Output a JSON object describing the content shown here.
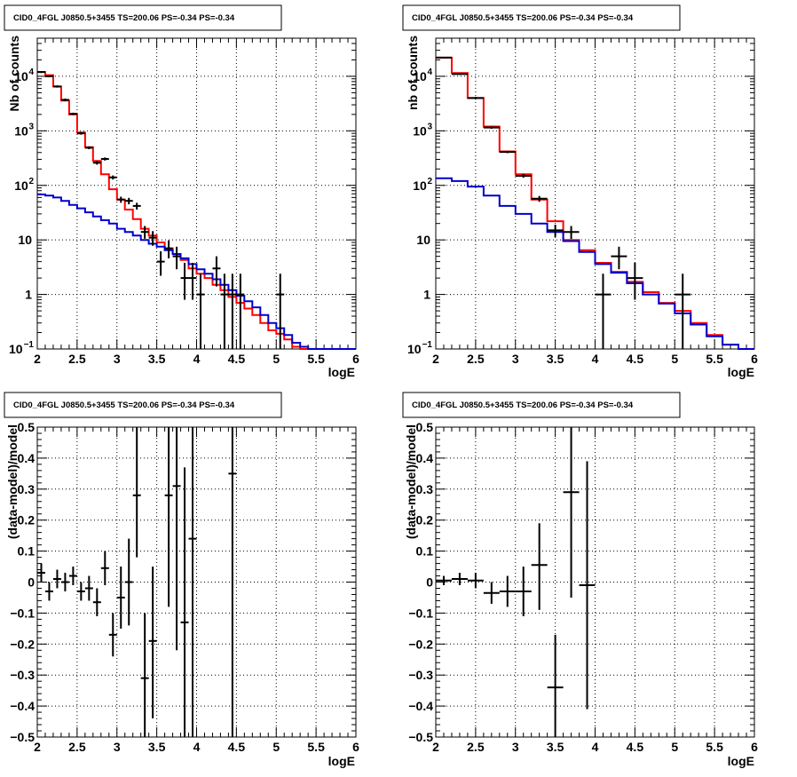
{
  "colors": {
    "data": "#000000",
    "total_model": "#ff0000",
    "component_model": "#0000cc",
    "grid": "#000000"
  },
  "chart_data": [
    {
      "id": "counts-left",
      "type": "histogram",
      "title": "CID0_4FGL J0850.5+3455 TS=200.06 PS=-0.34 PS=-0.34",
      "xlabel": "logE",
      "ylabel": "Nb of counts",
      "xlim": [
        2,
        6
      ],
      "ylim": [
        0.1,
        50000
      ],
      "yscale": "log",
      "grid": true,
      "xticks": [
        {
          "v": 2,
          "label": "2"
        },
        {
          "v": 2.5,
          "label": "2.5"
        },
        {
          "v": 3,
          "label": "3"
        },
        {
          "v": 3.5,
          "label": "3.5"
        },
        {
          "v": 4,
          "label": "4"
        },
        {
          "v": 4.5,
          "label": "4.5"
        },
        {
          "v": 5,
          "label": "5"
        },
        {
          "v": 5.5,
          "label": "5.5"
        },
        {
          "v": 6,
          "label": "6"
        }
      ],
      "yticks": [
        {
          "v": 0.1,
          "base": "10",
          "exp": "−1"
        },
        {
          "v": 1,
          "base": "1",
          "exp": ""
        },
        {
          "v": 10,
          "base": "10",
          "exp": ""
        },
        {
          "v": 100,
          "base": "10",
          "exp": "2"
        },
        {
          "v": 1000,
          "base": "10",
          "exp": "3"
        },
        {
          "v": 10000,
          "base": "10",
          "exp": "4"
        }
      ],
      "bin_edges": [
        2.0,
        2.1,
        2.2,
        2.3,
        2.4,
        2.5,
        2.6,
        2.7,
        2.8,
        2.9,
        3.0,
        3.1,
        3.2,
        3.3,
        3.4,
        3.5,
        3.6,
        3.7,
        3.8,
        3.9,
        4.0,
        4.1,
        4.2,
        4.3,
        4.4,
        4.5,
        4.6,
        4.7,
        4.8,
        4.9,
        5.0,
        5.1,
        5.2,
        5.3,
        5.4,
        5.5,
        5.6,
        5.7,
        5.8,
        5.9,
        6.0
      ],
      "series": [
        {
          "role": "total_model",
          "values": [
            12000,
            10500,
            6500,
            3600,
            2000,
            930,
            500,
            280,
            160,
            85,
            55,
            36,
            24,
            16,
            12,
            9,
            7,
            5.5,
            4.3,
            3.0,
            2.4,
            2.0,
            1.5,
            1.2,
            0.9,
            0.7,
            0.55,
            0.42,
            0.3,
            0.22,
            0.19,
            0.15,
            0.11,
            0.1,
            0.1,
            0.1,
            0.1,
            0.1,
            0.1,
            0.1
          ]
        },
        {
          "role": "component_model",
          "values": [
            68,
            65,
            60,
            52,
            44,
            38,
            32,
            27,
            23,
            20,
            16,
            14,
            12,
            10,
            8.5,
            7.5,
            6.5,
            5.5,
            4.6,
            3.6,
            2.9,
            2.4,
            1.9,
            1.5,
            1.2,
            0.95,
            0.75,
            0.58,
            0.42,
            0.3,
            0.24,
            0.18,
            0.13,
            0.11,
            0.1,
            0.1,
            0.1,
            0.1,
            0.1,
            0.1
          ]
        },
        {
          "role": "data",
          "points": [
            {
              "x": 2.05,
              "y": 12000,
              "lo": 11500,
              "hi": 12500
            },
            {
              "x": 2.15,
              "y": 10000,
              "lo": 9600,
              "hi": 10400
            },
            {
              "x": 2.25,
              "y": 6500,
              "lo": 6200,
              "hi": 6800
            },
            {
              "x": 2.35,
              "y": 3700,
              "lo": 3500,
              "hi": 3900
            },
            {
              "x": 2.45,
              "y": 2050,
              "lo": 1950,
              "hi": 2150
            },
            {
              "x": 2.55,
              "y": 900,
              "lo": 850,
              "hi": 950
            },
            {
              "x": 2.65,
              "y": 490,
              "lo": 460,
              "hi": 520
            },
            {
              "x": 2.75,
              "y": 260,
              "lo": 240,
              "hi": 280
            },
            {
              "x": 2.85,
              "y": 305,
              "lo": 285,
              "hi": 325
            },
            {
              "x": 2.95,
              "y": 140,
              "lo": 128,
              "hi": 152
            },
            {
              "x": 3.05,
              "y": 55,
              "lo": 48,
              "hi": 62
            },
            {
              "x": 3.15,
              "y": 52,
              "lo": 45,
              "hi": 59
            },
            {
              "x": 3.25,
              "y": 42,
              "lo": 36,
              "hi": 48
            },
            {
              "x": 3.35,
              "y": 14,
              "lo": 10.5,
              "hi": 18
            },
            {
              "x": 3.45,
              "y": 11,
              "lo": 7.8,
              "hi": 14.5
            },
            {
              "x": 3.55,
              "y": 4,
              "lo": 2.2,
              "hi": 6.2
            },
            {
              "x": 3.65,
              "y": 7,
              "lo": 4.6,
              "hi": 9.8
            },
            {
              "x": 3.75,
              "y": 5,
              "lo": 2.9,
              "hi": 7.5
            },
            {
              "x": 3.85,
              "y": 2,
              "lo": 0.8,
              "hi": 3.8
            },
            {
              "x": 3.95,
              "y": 2,
              "lo": 0.8,
              "hi": 3.8
            },
            {
              "x": 4.05,
              "y": 1,
              "lo": 0.1,
              "hi": 2.4
            },
            {
              "x": 4.25,
              "y": 3,
              "lo": 1.4,
              "hi": 5.0
            },
            {
              "x": 4.35,
              "y": 1,
              "lo": 0.1,
              "hi": 2.4
            },
            {
              "x": 4.45,
              "y": 1,
              "lo": 0.1,
              "hi": 2.4
            },
            {
              "x": 4.55,
              "y": 1,
              "lo": 0.1,
              "hi": 2.4
            },
            {
              "x": 5.05,
              "y": 1,
              "lo": 0.1,
              "hi": 2.4
            }
          ]
        }
      ]
    },
    {
      "id": "counts-right",
      "type": "histogram",
      "title": "CID0_4FGL J0850.5+3455 TS=200.06 PS=-0.34 PS=-0.34",
      "xlabel": "logE",
      "ylabel": "nb of counts",
      "xlim": [
        2,
        6
      ],
      "ylim": [
        0.1,
        50000
      ],
      "yscale": "log",
      "grid": true,
      "xticks": [
        {
          "v": 2,
          "label": "2"
        },
        {
          "v": 2.5,
          "label": "2.5"
        },
        {
          "v": 3,
          "label": "3"
        },
        {
          "v": 3.5,
          "label": "3.5"
        },
        {
          "v": 4,
          "label": "4"
        },
        {
          "v": 4.5,
          "label": "4.5"
        },
        {
          "v": 5,
          "label": "5"
        },
        {
          "v": 5.5,
          "label": "5.5"
        },
        {
          "v": 6,
          "label": "6"
        }
      ],
      "yticks": [
        {
          "v": 0.1,
          "base": "10",
          "exp": "−1"
        },
        {
          "v": 1,
          "base": "1",
          "exp": ""
        },
        {
          "v": 10,
          "base": "10",
          "exp": ""
        },
        {
          "v": 100,
          "base": "10",
          "exp": "2"
        },
        {
          "v": 1000,
          "base": "10",
          "exp": "3"
        },
        {
          "v": 10000,
          "base": "10",
          "exp": "4"
        }
      ],
      "bin_edges": [
        2.0,
        2.2,
        2.4,
        2.6,
        2.8,
        3.0,
        3.2,
        3.4,
        3.6,
        3.8,
        4.0,
        4.2,
        4.4,
        4.6,
        4.8,
        5.0,
        5.2,
        5.4,
        5.6,
        5.8,
        6.0
      ],
      "series": [
        {
          "role": "total_model",
          "values": [
            22000,
            11500,
            4000,
            1200,
            420,
            160,
            55,
            22,
            10,
            6.5,
            3.8,
            2.6,
            1.7,
            1.1,
            0.7,
            0.5,
            0.3,
            0.18,
            0.12,
            0.1
          ]
        },
        {
          "role": "component_model",
          "values": [
            135,
            120,
            95,
            65,
            42,
            30,
            20,
            14,
            9.5,
            6.0,
            3.6,
            2.5,
            1.6,
            1.0,
            0.68,
            0.45,
            0.28,
            0.17,
            0.12,
            0.1
          ]
        },
        {
          "role": "data",
          "points": [
            {
              "x": 2.1,
              "y": 22000,
              "lo": 21400,
              "hi": 22600
            },
            {
              "x": 2.3,
              "y": 11000,
              "lo": 10600,
              "hi": 11400
            },
            {
              "x": 2.5,
              "y": 4000,
              "lo": 3800,
              "hi": 4200
            },
            {
              "x": 2.7,
              "y": 1150,
              "lo": 1090,
              "hi": 1210
            },
            {
              "x": 2.9,
              "y": 410,
              "lo": 390,
              "hi": 430
            },
            {
              "x": 3.1,
              "y": 150,
              "lo": 138,
              "hi": 162
            },
            {
              "x": 3.3,
              "y": 57,
              "lo": 50,
              "hi": 64
            },
            {
              "x": 3.5,
              "y": 15,
              "lo": 11.3,
              "hi": 19
            },
            {
              "x": 3.7,
              "y": 14,
              "lo": 10.4,
              "hi": 18
            },
            {
              "x": 4.1,
              "y": 1,
              "lo": 0.1,
              "hi": 2.4
            },
            {
              "x": 4.3,
              "y": 5,
              "lo": 2.9,
              "hi": 7.5
            },
            {
              "x": 4.5,
              "y": 2,
              "lo": 0.8,
              "hi": 3.8
            },
            {
              "x": 5.1,
              "y": 1,
              "lo": 0.1,
              "hi": 2.4
            }
          ]
        }
      ]
    },
    {
      "id": "residuals-left",
      "type": "scatter",
      "title": "CID0_4FGL J0850.5+3455 TS=200.06 PS=-0.34 PS=-0.34",
      "xlabel": "logE",
      "ylabel": "(data-model)/model",
      "xlim": [
        2,
        6
      ],
      "ylim": [
        -0.5,
        0.5
      ],
      "yscale": "linear",
      "grid": true,
      "xticks": [
        {
          "v": 2,
          "label": "2"
        },
        {
          "v": 2.5,
          "label": "2.5"
        },
        {
          "v": 3,
          "label": "3"
        },
        {
          "v": 3.5,
          "label": "3.5"
        },
        {
          "v": 4,
          "label": "4"
        },
        {
          "v": 4.5,
          "label": "4.5"
        },
        {
          "v": 5,
          "label": "5"
        },
        {
          "v": 5.5,
          "label": "5.5"
        },
        {
          "v": 6,
          "label": "6"
        }
      ],
      "yticks": [
        {
          "v": -0.5,
          "label": "−0.5"
        },
        {
          "v": -0.4,
          "label": "−0.4"
        },
        {
          "v": -0.3,
          "label": "−0.3"
        },
        {
          "v": -0.2,
          "label": "−0.2"
        },
        {
          "v": -0.1,
          "label": "−0.1"
        },
        {
          "v": 0,
          "label": "0"
        },
        {
          "v": 0.1,
          "label": "0.1"
        },
        {
          "v": 0.2,
          "label": "0.2"
        },
        {
          "v": 0.3,
          "label": "0.3"
        },
        {
          "v": 0.4,
          "label": "0.4"
        },
        {
          "v": 0.5,
          "label": "0.5"
        }
      ],
      "series": [
        {
          "role": "data",
          "xerr": 0.05,
          "points": [
            {
              "x": 2.05,
              "y": 0.03,
              "lo": 0.0,
              "hi": 0.06
            },
            {
              "x": 2.15,
              "y": -0.03,
              "lo": -0.06,
              "hi": 0.0
            },
            {
              "x": 2.25,
              "y": 0.01,
              "lo": -0.02,
              "hi": 0.04
            },
            {
              "x": 2.35,
              "y": 0.0,
              "lo": -0.03,
              "hi": 0.03
            },
            {
              "x": 2.45,
              "y": 0.02,
              "lo": -0.01,
              "hi": 0.05
            },
            {
              "x": 2.55,
              "y": -0.03,
              "lo": -0.06,
              "hi": 0.0
            },
            {
              "x": 2.65,
              "y": -0.02,
              "lo": -0.06,
              "hi": 0.02
            },
            {
              "x": 2.75,
              "y": -0.065,
              "lo": -0.11,
              "hi": -0.02
            },
            {
              "x": 2.85,
              "y": 0.045,
              "lo": -0.01,
              "hi": 0.1
            },
            {
              "x": 2.95,
              "y": -0.17,
              "lo": -0.24,
              "hi": -0.1
            },
            {
              "x": 3.05,
              "y": -0.05,
              "lo": -0.15,
              "hi": 0.05
            },
            {
              "x": 3.15,
              "y": 0.0,
              "lo": -0.14,
              "hi": 0.14
            },
            {
              "x": 3.25,
              "y": 0.28,
              "lo": 0.08,
              "hi": 0.5
            },
            {
              "x": 3.35,
              "y": -0.31,
              "lo": -0.5,
              "hi": -0.1
            },
            {
              "x": 3.45,
              "y": -0.19,
              "lo": -0.44,
              "hi": 0.05
            },
            {
              "x": 3.65,
              "y": 0.28,
              "lo": -0.08,
              "hi": 0.5
            },
            {
              "x": 3.75,
              "y": 0.31,
              "lo": -0.22,
              "hi": 0.5
            },
            {
              "x": 3.85,
              "y": -0.13,
              "lo": -0.5,
              "hi": 0.37
            },
            {
              "x": 3.95,
              "y": 0.14,
              "lo": -0.5,
              "hi": 0.5
            },
            {
              "x": 4.45,
              "y": 0.35,
              "lo": -0.5,
              "hi": 0.5
            }
          ]
        }
      ]
    },
    {
      "id": "residuals-right",
      "type": "scatter",
      "title": "CID0_4FGL J0850.5+3455 TS=200.06 PS=-0.34 PS=-0.34",
      "xlabel": "logE",
      "ylabel": "(data-model)/model",
      "xlim": [
        2,
        6
      ],
      "ylim": [
        -0.5,
        0.5
      ],
      "yscale": "linear",
      "grid": true,
      "xticks": [
        {
          "v": 2,
          "label": "2"
        },
        {
          "v": 2.5,
          "label": "2.5"
        },
        {
          "v": 3,
          "label": "3"
        },
        {
          "v": 3.5,
          "label": "3.5"
        },
        {
          "v": 4,
          "label": "4"
        },
        {
          "v": 4.5,
          "label": "4.5"
        },
        {
          "v": 5,
          "label": "5"
        },
        {
          "v": 5.5,
          "label": "5.5"
        },
        {
          "v": 6,
          "label": "6"
        }
      ],
      "yticks": [
        {
          "v": -0.5,
          "label": "−0.5"
        },
        {
          "v": -0.4,
          "label": "−0.4"
        },
        {
          "v": -0.3,
          "label": "−0.3"
        },
        {
          "v": -0.2,
          "label": "−0.2"
        },
        {
          "v": -0.1,
          "label": "−0.1"
        },
        {
          "v": 0,
          "label": "0"
        },
        {
          "v": 0.1,
          "label": "0.1"
        },
        {
          "v": 0.2,
          "label": "0.2"
        },
        {
          "v": 0.3,
          "label": "0.3"
        },
        {
          "v": 0.4,
          "label": "0.4"
        },
        {
          "v": 0.5,
          "label": "0.5"
        }
      ],
      "series": [
        {
          "role": "data",
          "xerr": 0.1,
          "points": [
            {
              "x": 2.1,
              "y": 0.005,
              "lo": -0.01,
              "hi": 0.02
            },
            {
              "x": 2.3,
              "y": 0.01,
              "lo": -0.01,
              "hi": 0.03
            },
            {
              "x": 2.5,
              "y": 0.005,
              "lo": -0.02,
              "hi": 0.03
            },
            {
              "x": 2.7,
              "y": -0.035,
              "lo": -0.07,
              "hi": 0.0
            },
            {
              "x": 2.9,
              "y": -0.03,
              "lo": -0.08,
              "hi": 0.02
            },
            {
              "x": 3.1,
              "y": -0.03,
              "lo": -0.11,
              "hi": 0.05
            },
            {
              "x": 3.3,
              "y": 0.055,
              "lo": -0.09,
              "hi": 0.19
            },
            {
              "x": 3.5,
              "y": -0.34,
              "lo": -0.5,
              "hi": -0.17
            },
            {
              "x": 3.7,
              "y": 0.29,
              "lo": -0.05,
              "hi": 0.5
            },
            {
              "x": 3.9,
              "y": -0.01,
              "lo": -0.41,
              "hi": 0.39
            }
          ]
        }
      ]
    }
  ]
}
